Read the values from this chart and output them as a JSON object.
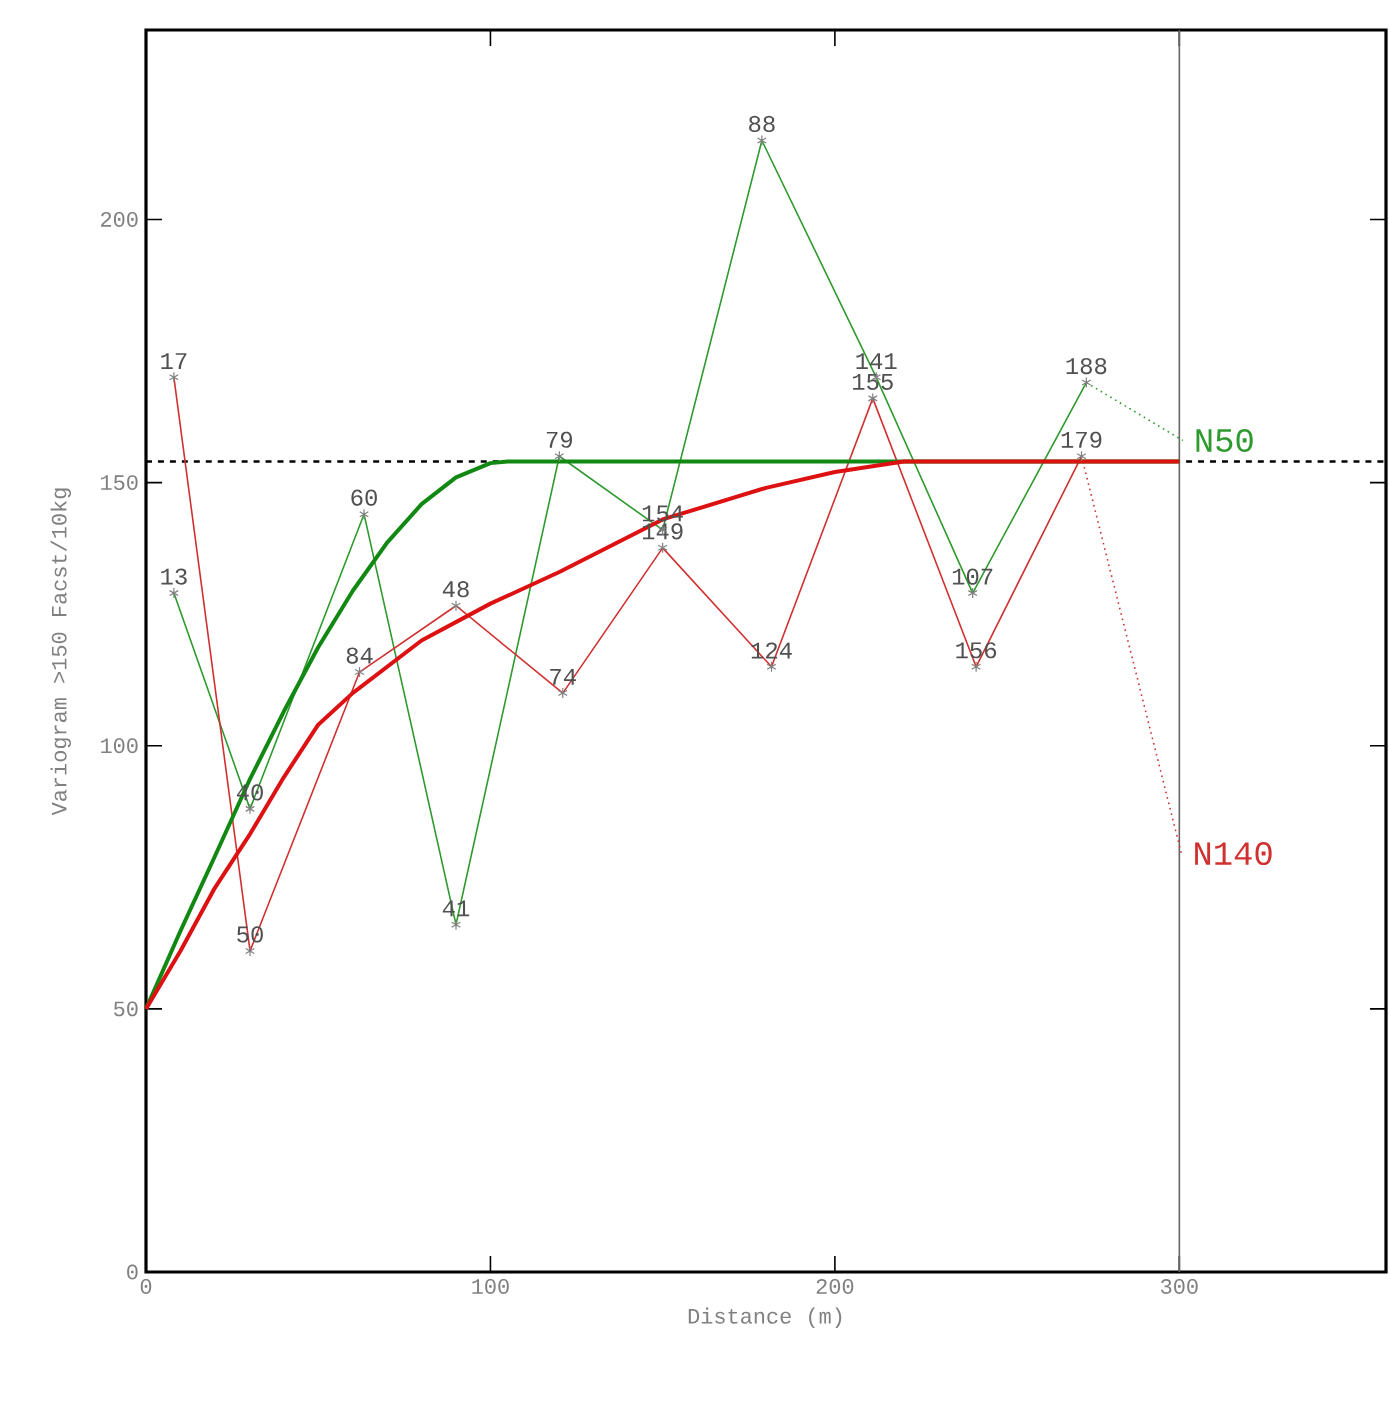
{
  "chart_data": {
    "type": "line",
    "xlabel": "Distance (m)",
    "ylabel": "Variogram >150 Facst/10kg",
    "xlim": [
      0,
      360
    ],
    "ylim": [
      0,
      236
    ],
    "xticks": [
      0,
      100,
      200,
      300
    ],
    "yticks": [
      0,
      50,
      100,
      150,
      200
    ],
    "series": [
      {
        "color": "#2e9a2e",
        "marker": "cross",
        "x": [
          8.1,
          30.2,
          63.3,
          90,
          120,
          150,
          178.8,
          212,
          240,
          273
        ],
        "values": [
          129,
          88,
          144,
          66,
          155,
          141,
          215,
          170,
          129,
          169
        ]
      },
      {
        "color": "#d03030",
        "marker": "cross",
        "x": [
          8.1,
          30.2,
          62,
          90,
          121,
          150,
          181.6,
          211,
          241,
          271.6
        ],
        "values": [
          170,
          61,
          114,
          126.6,
          110,
          137.6,
          115,
          166,
          115,
          155
        ]
      },
      {
        "name": "N50",
        "color": "#2e9a2e",
        "marker": "none",
        "line_style": "dotted",
        "x": [
          273,
          301
        ],
        "values": [
          169,
          158
        ]
      },
      {
        "name": "N140",
        "color": "#d03030",
        "marker": "none",
        "line_style": "dotted",
        "x": [
          271.6,
          300.6
        ],
        "values": [
          155,
          79.5
        ]
      },
      {
        "color": "#118811",
        "marker": "none",
        "line_style": "solid",
        "x": [
          0,
          10,
          20,
          30,
          40,
          50,
          60,
          70,
          80,
          90,
          100,
          105,
          300
        ],
        "values": [
          50,
          64.8,
          79,
          93.4,
          106.5,
          118.7,
          129.4,
          138.6,
          145.9,
          151,
          153.7,
          154,
          154
        ]
      },
      {
        "color": "#dd1111",
        "marker": "none",
        "line_style": "solid",
        "x": [
          0,
          10,
          20,
          30,
          40,
          50,
          60,
          80,
          100,
          120,
          150,
          180,
          200,
          220,
          300
        ],
        "values": [
          50,
          61,
          73,
          83,
          94,
          104,
          110,
          120,
          127,
          133,
          143,
          149,
          152,
          154,
          154
        ]
      }
    ],
    "ref_lines": [
      {
        "axis": "y",
        "value": 154,
        "color": "#000000",
        "line_style": "dashed"
      },
      {
        "axis": "x",
        "value": 300,
        "color": "#666666",
        "line_style": "solid"
      }
    ],
    "annotations": [
      {
        "text": "13",
        "x": 8.1,
        "y": 129
      },
      {
        "text": "40",
        "x": 30.2,
        "y": 88
      },
      {
        "text": "60",
        "x": 63.3,
        "y": 144
      },
      {
        "text": "41",
        "x": 90,
        "y": 66
      },
      {
        "text": "79",
        "x": 120,
        "y": 155
      },
      {
        "text": "154",
        "x": 150,
        "y": 141
      },
      {
        "text": "88",
        "x": 178.8,
        "y": 215
      },
      {
        "text": "141",
        "x": 212,
        "y": 170
      },
      {
        "text": "107",
        "x": 240,
        "y": 129
      },
      {
        "text": "188",
        "x": 273,
        "y": 169
      },
      {
        "text": "17",
        "x": 8.1,
        "y": 170
      },
      {
        "text": "50",
        "x": 30.2,
        "y": 61
      },
      {
        "text": "84",
        "x": 62,
        "y": 114
      },
      {
        "text": "48",
        "x": 90,
        "y": 126.6
      },
      {
        "text": "74",
        "x": 121,
        "y": 110
      },
      {
        "text": "149",
        "x": 150,
        "y": 137.6
      },
      {
        "text": "124",
        "x": 181.6,
        "y": 115
      },
      {
        "text": "155",
        "x": 211,
        "y": 166
      },
      {
        "text": "156",
        "x": 241,
        "y": 115
      },
      {
        "text": "179",
        "x": 271.6,
        "y": 155
      }
    ]
  }
}
